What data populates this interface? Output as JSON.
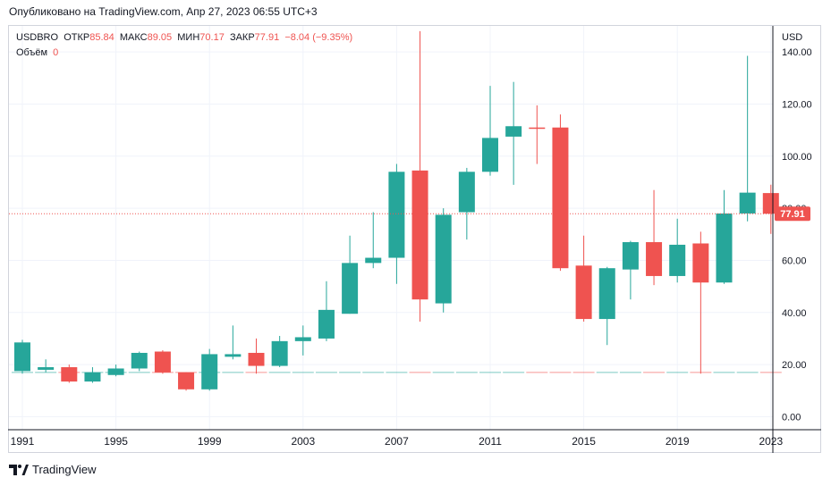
{
  "header": {
    "published": "Опубликовано на TradingView.com, Апр 27, 2023 06:55 UTC+3"
  },
  "legend": {
    "symbol": "USDBRO",
    "open_label": "ОТКР",
    "open": "85.84",
    "high_label": "МАКС",
    "high": "89.05",
    "low_label": "МИН",
    "low": "70.17",
    "close_label": "ЗАКР",
    "close": "77.91",
    "change": "−8.04 (−9.35%)",
    "volume_label": "Объём",
    "volume": "0"
  },
  "footer": {
    "brand": "TradingView"
  },
  "colors": {
    "up": "#26a69a",
    "down": "#ef5350",
    "grid": "#f0f3fa",
    "axis_text": "#131722"
  },
  "chart_data": {
    "type": "candlestick",
    "currency_label": "USD",
    "last_price_label": "77.91",
    "ylim": [
      -5,
      150
    ],
    "y_ticks": [
      "0.00",
      "20.00",
      "40.00",
      "60.00",
      "80.00",
      "100.00",
      "120.00",
      "140.00"
    ],
    "x_ticks": [
      "1991",
      "1995",
      "1999",
      "2003",
      "2007",
      "2011",
      "2015",
      "2019",
      "2023"
    ],
    "candles": [
      {
        "year": 1991,
        "o": 17.5,
        "h": 29.5,
        "l": 16.5,
        "c": 28.5
      },
      {
        "year": 1992,
        "o": 18.0,
        "h": 22.0,
        "l": 17.0,
        "c": 19.0
      },
      {
        "year": 1993,
        "o": 19.0,
        "h": 20.0,
        "l": 13.0,
        "c": 13.5
      },
      {
        "year": 1994,
        "o": 13.5,
        "h": 19.0,
        "l": 13.0,
        "c": 17.0
      },
      {
        "year": 1995,
        "o": 16.0,
        "h": 20.0,
        "l": 15.5,
        "c": 18.5
      },
      {
        "year": 1996,
        "o": 18.5,
        "h": 25.0,
        "l": 17.5,
        "c": 24.5
      },
      {
        "year": 1997,
        "o": 25.0,
        "h": 25.5,
        "l": 16.5,
        "c": 17.0
      },
      {
        "year": 1998,
        "o": 17.0,
        "h": 17.0,
        "l": 10.0,
        "c": 10.5
      },
      {
        "year": 1999,
        "o": 10.5,
        "h": 26.0,
        "l": 10.0,
        "c": 24.0
      },
      {
        "year": 2000,
        "o": 23.0,
        "h": 35.0,
        "l": 22.0,
        "c": 24.0
      },
      {
        "year": 2001,
        "o": 24.5,
        "h": 30.0,
        "l": 16.5,
        "c": 19.5
      },
      {
        "year": 2002,
        "o": 19.5,
        "h": 31.0,
        "l": 19.0,
        "c": 29.0
      },
      {
        "year": 2003,
        "o": 29.0,
        "h": 35.0,
        "l": 23.5,
        "c": 30.5
      },
      {
        "year": 2004,
        "o": 30.0,
        "h": 52.0,
        "l": 29.0,
        "c": 41.0
      },
      {
        "year": 2005,
        "o": 39.5,
        "h": 69.5,
        "l": 39.5,
        "c": 59.0
      },
      {
        "year": 2006,
        "o": 59.0,
        "h": 78.5,
        "l": 57.0,
        "c": 61.0
      },
      {
        "year": 2007,
        "o": 61.0,
        "h": 97.0,
        "l": 51.0,
        "c": 94.0
      },
      {
        "year": 2008,
        "o": 94.5,
        "h": 148.0,
        "l": 36.5,
        "c": 45.0
      },
      {
        "year": 2009,
        "o": 43.5,
        "h": 80.0,
        "l": 40.0,
        "c": 77.5
      },
      {
        "year": 2010,
        "o": 78.5,
        "h": 95.5,
        "l": 68.0,
        "c": 94.0
      },
      {
        "year": 2011,
        "o": 94.0,
        "h": 127.0,
        "l": 92.5,
        "c": 107.0
      },
      {
        "year": 2012,
        "o": 107.5,
        "h": 128.5,
        "l": 89.0,
        "c": 111.5
      },
      {
        "year": 2013,
        "o": 111.0,
        "h": 119.5,
        "l": 97.0,
        "c": 110.5
      },
      {
        "year": 2014,
        "o": 111.0,
        "h": 116.0,
        "l": 56.0,
        "c": 57.0
      },
      {
        "year": 2015,
        "o": 58.0,
        "h": 69.5,
        "l": 36.5,
        "c": 37.5
      },
      {
        "year": 2016,
        "o": 37.5,
        "h": 57.5,
        "l": 27.5,
        "c": 57.0
      },
      {
        "year": 2017,
        "o": 56.5,
        "h": 67.5,
        "l": 45.0,
        "c": 67.0
      },
      {
        "year": 2018,
        "o": 67.0,
        "h": 87.0,
        "l": 50.5,
        "c": 54.0
      },
      {
        "year": 2019,
        "o": 54.0,
        "h": 76.0,
        "l": 51.5,
        "c": 66.0
      },
      {
        "year": 2020,
        "o": 66.5,
        "h": 71.0,
        "l": 16.5,
        "c": 51.5
      },
      {
        "year": 2021,
        "o": 51.5,
        "h": 87.0,
        "l": 51.0,
        "c": 78.0
      },
      {
        "year": 2022,
        "o": 78.0,
        "h": 138.5,
        "l": 75.0,
        "c": 86.0
      },
      {
        "year": 2023,
        "o": 85.84,
        "h": 89.05,
        "l": 70.17,
        "c": 77.91
      }
    ]
  }
}
